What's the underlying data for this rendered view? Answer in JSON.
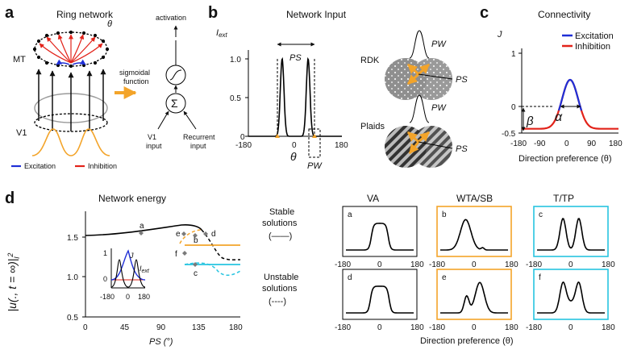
{
  "colors": {
    "excitation": "#1f2fd6",
    "inhibition": "#e2231a",
    "orange": "#f3a42a",
    "cyan": "#27c4e0",
    "gray": "#9a9a9a"
  },
  "panel_a": {
    "letter": "a",
    "title": "Ring network",
    "mt_label": "MT",
    "theta_label": "θ",
    "v1_label": "V1",
    "activation_label": "activation",
    "sigmoid_label_line1": "sigmoidal",
    "sigmoid_label_line2": "function",
    "v1_input_line1": "V1",
    "v1_input_line2": "input",
    "recurrent_line1": "Recurrent",
    "recurrent_line2": "input",
    "legend_excitation": "Excitation",
    "legend_inhibition": "Inhibition"
  },
  "panel_b": {
    "letter": "b",
    "title": "Network Input",
    "ylabel": "I",
    "ylabel_sub": "ext",
    "ps_label": "PS",
    "pw_label": "PW",
    "xlabel": "θ",
    "rdk_label": "RDK",
    "plaids_label": "Plaids",
    "rdk_pw": "PW",
    "rdk_ps": "PS",
    "plaid_pw": "PW",
    "plaid_ps": "PS",
    "yticks": [
      "1.0",
      "0.5",
      "0"
    ],
    "xticks": [
      "-180",
      "0",
      "180"
    ]
  },
  "panel_c": {
    "letter": "c",
    "title": "Connectivity",
    "ylabel": "J",
    "legend_excitation": "Excitation",
    "legend_inhibition": "Inhibition",
    "alpha": "α",
    "beta": "β",
    "yticks": [
      "1",
      "0",
      "-0.5"
    ],
    "xticks": [
      "-180",
      "-90",
      "0",
      "90",
      "180"
    ],
    "xlabel": "Direction preference (θ)"
  },
  "panel_d": {
    "letter": "d",
    "energy_title": "Network energy",
    "ylabel": "|u(., t = ∞)|",
    "ylabel_sub": "l",
    "ylabel_sup": "2",
    "yticks": [
      "1.5",
      "1.0",
      "0.5"
    ],
    "xticks": [
      "0",
      "45",
      "90",
      "135",
      "180"
    ],
    "xlabel": "PS (°)",
    "points": [
      "a",
      "b",
      "c",
      "d",
      "e",
      "f"
    ],
    "inset_j": "J",
    "inset_iext": "I",
    "inset_iext_sub": "ext",
    "inset_yticks": [
      "1",
      "0"
    ],
    "inset_xticks": [
      "-180",
      "0",
      "180"
    ],
    "stable_line1": "Stable",
    "stable_line2": "solutions",
    "stable_marker": "(——)",
    "unstable_line1": "Unstable",
    "unstable_line2": "solutions",
    "unstable_marker": "(----)",
    "col_titles": [
      "VA",
      "WTA/SB",
      "T/TP"
    ],
    "small_labels": [
      "a",
      "b",
      "c",
      "d",
      "e",
      "f"
    ],
    "small_xticks": [
      "-180",
      "0",
      "180"
    ],
    "small_xlabel": "Direction preference (θ)"
  }
}
